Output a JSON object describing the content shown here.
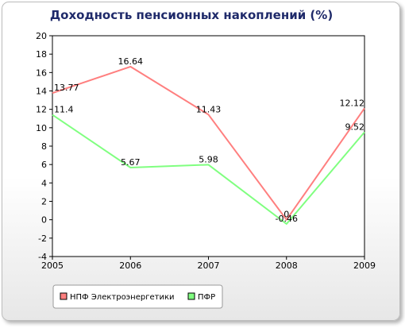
{
  "chart_data": {
    "type": "line",
    "title": "Доходность пенсионных накоплений (%)",
    "x": [
      "2005",
      "2006",
      "2007",
      "2008",
      "2009"
    ],
    "y_ticks": [
      "-4",
      "-2",
      "0",
      "2",
      "4",
      "6",
      "8",
      "10",
      "12",
      "14",
      "16",
      "18",
      "20"
    ],
    "ylim": [
      -4,
      20
    ],
    "grid": false,
    "legend_position": "bottom-left",
    "series": [
      {
        "name": "НПФ Электроэнергетики",
        "color": "#ff7f7f",
        "values": [
          13.77,
          16.64,
          11.43,
          0,
          12.12
        ],
        "labels": [
          "13.77",
          "16.64",
          "11.43",
          "0",
          "12.12"
        ]
      },
      {
        "name": "ПФР",
        "color": "#80ff80",
        "values": [
          11.4,
          5.67,
          5.98,
          -0.46,
          9.52
        ],
        "labels": [
          "11.4",
          "5.67",
          "5.98",
          "-0.46",
          "9.52"
        ]
      }
    ]
  }
}
